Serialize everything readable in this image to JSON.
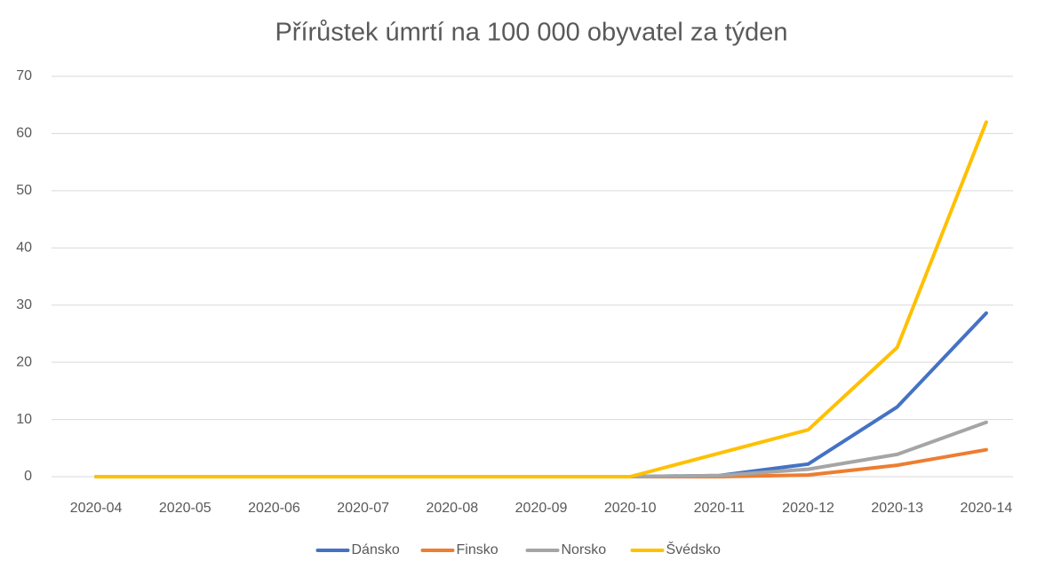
{
  "chart_data": {
    "type": "line",
    "title": "Přírůstek úmrtí na 100 000 obyvatel za týden",
    "categories": [
      "2020-04",
      "2020-05",
      "2020-06",
      "2020-07",
      "2020-08",
      "2020-09",
      "2020-10",
      "2020-11",
      "2020-12",
      "2020-13",
      "2020-14"
    ],
    "series": [
      {
        "name": "Dánsko",
        "color": "#4472c4",
        "values": [
          0,
          0,
          0,
          0,
          0,
          0,
          0,
          0.2,
          2.2,
          12.2,
          28.6
        ]
      },
      {
        "name": "Finsko",
        "color": "#ed7d31",
        "values": [
          0,
          0,
          0,
          0,
          0,
          0,
          0,
          0,
          0.3,
          2.0,
          4.7
        ]
      },
      {
        "name": "Norsko",
        "color": "#a5a5a5",
        "values": [
          0,
          0,
          0,
          0,
          0,
          0,
          0,
          0.2,
          1.3,
          3.9,
          9.5
        ]
      },
      {
        "name": "Švédsko",
        "color": "#ffc000",
        "values": [
          0,
          0,
          0,
          0,
          0,
          0,
          0,
          4.1,
          8.2,
          22.6,
          62
        ]
      }
    ],
    "ylim": [
      0,
      70
    ],
    "yticks": [
      0,
      10,
      20,
      30,
      40,
      50,
      60,
      70
    ],
    "grid": true,
    "legend": "bottom"
  }
}
